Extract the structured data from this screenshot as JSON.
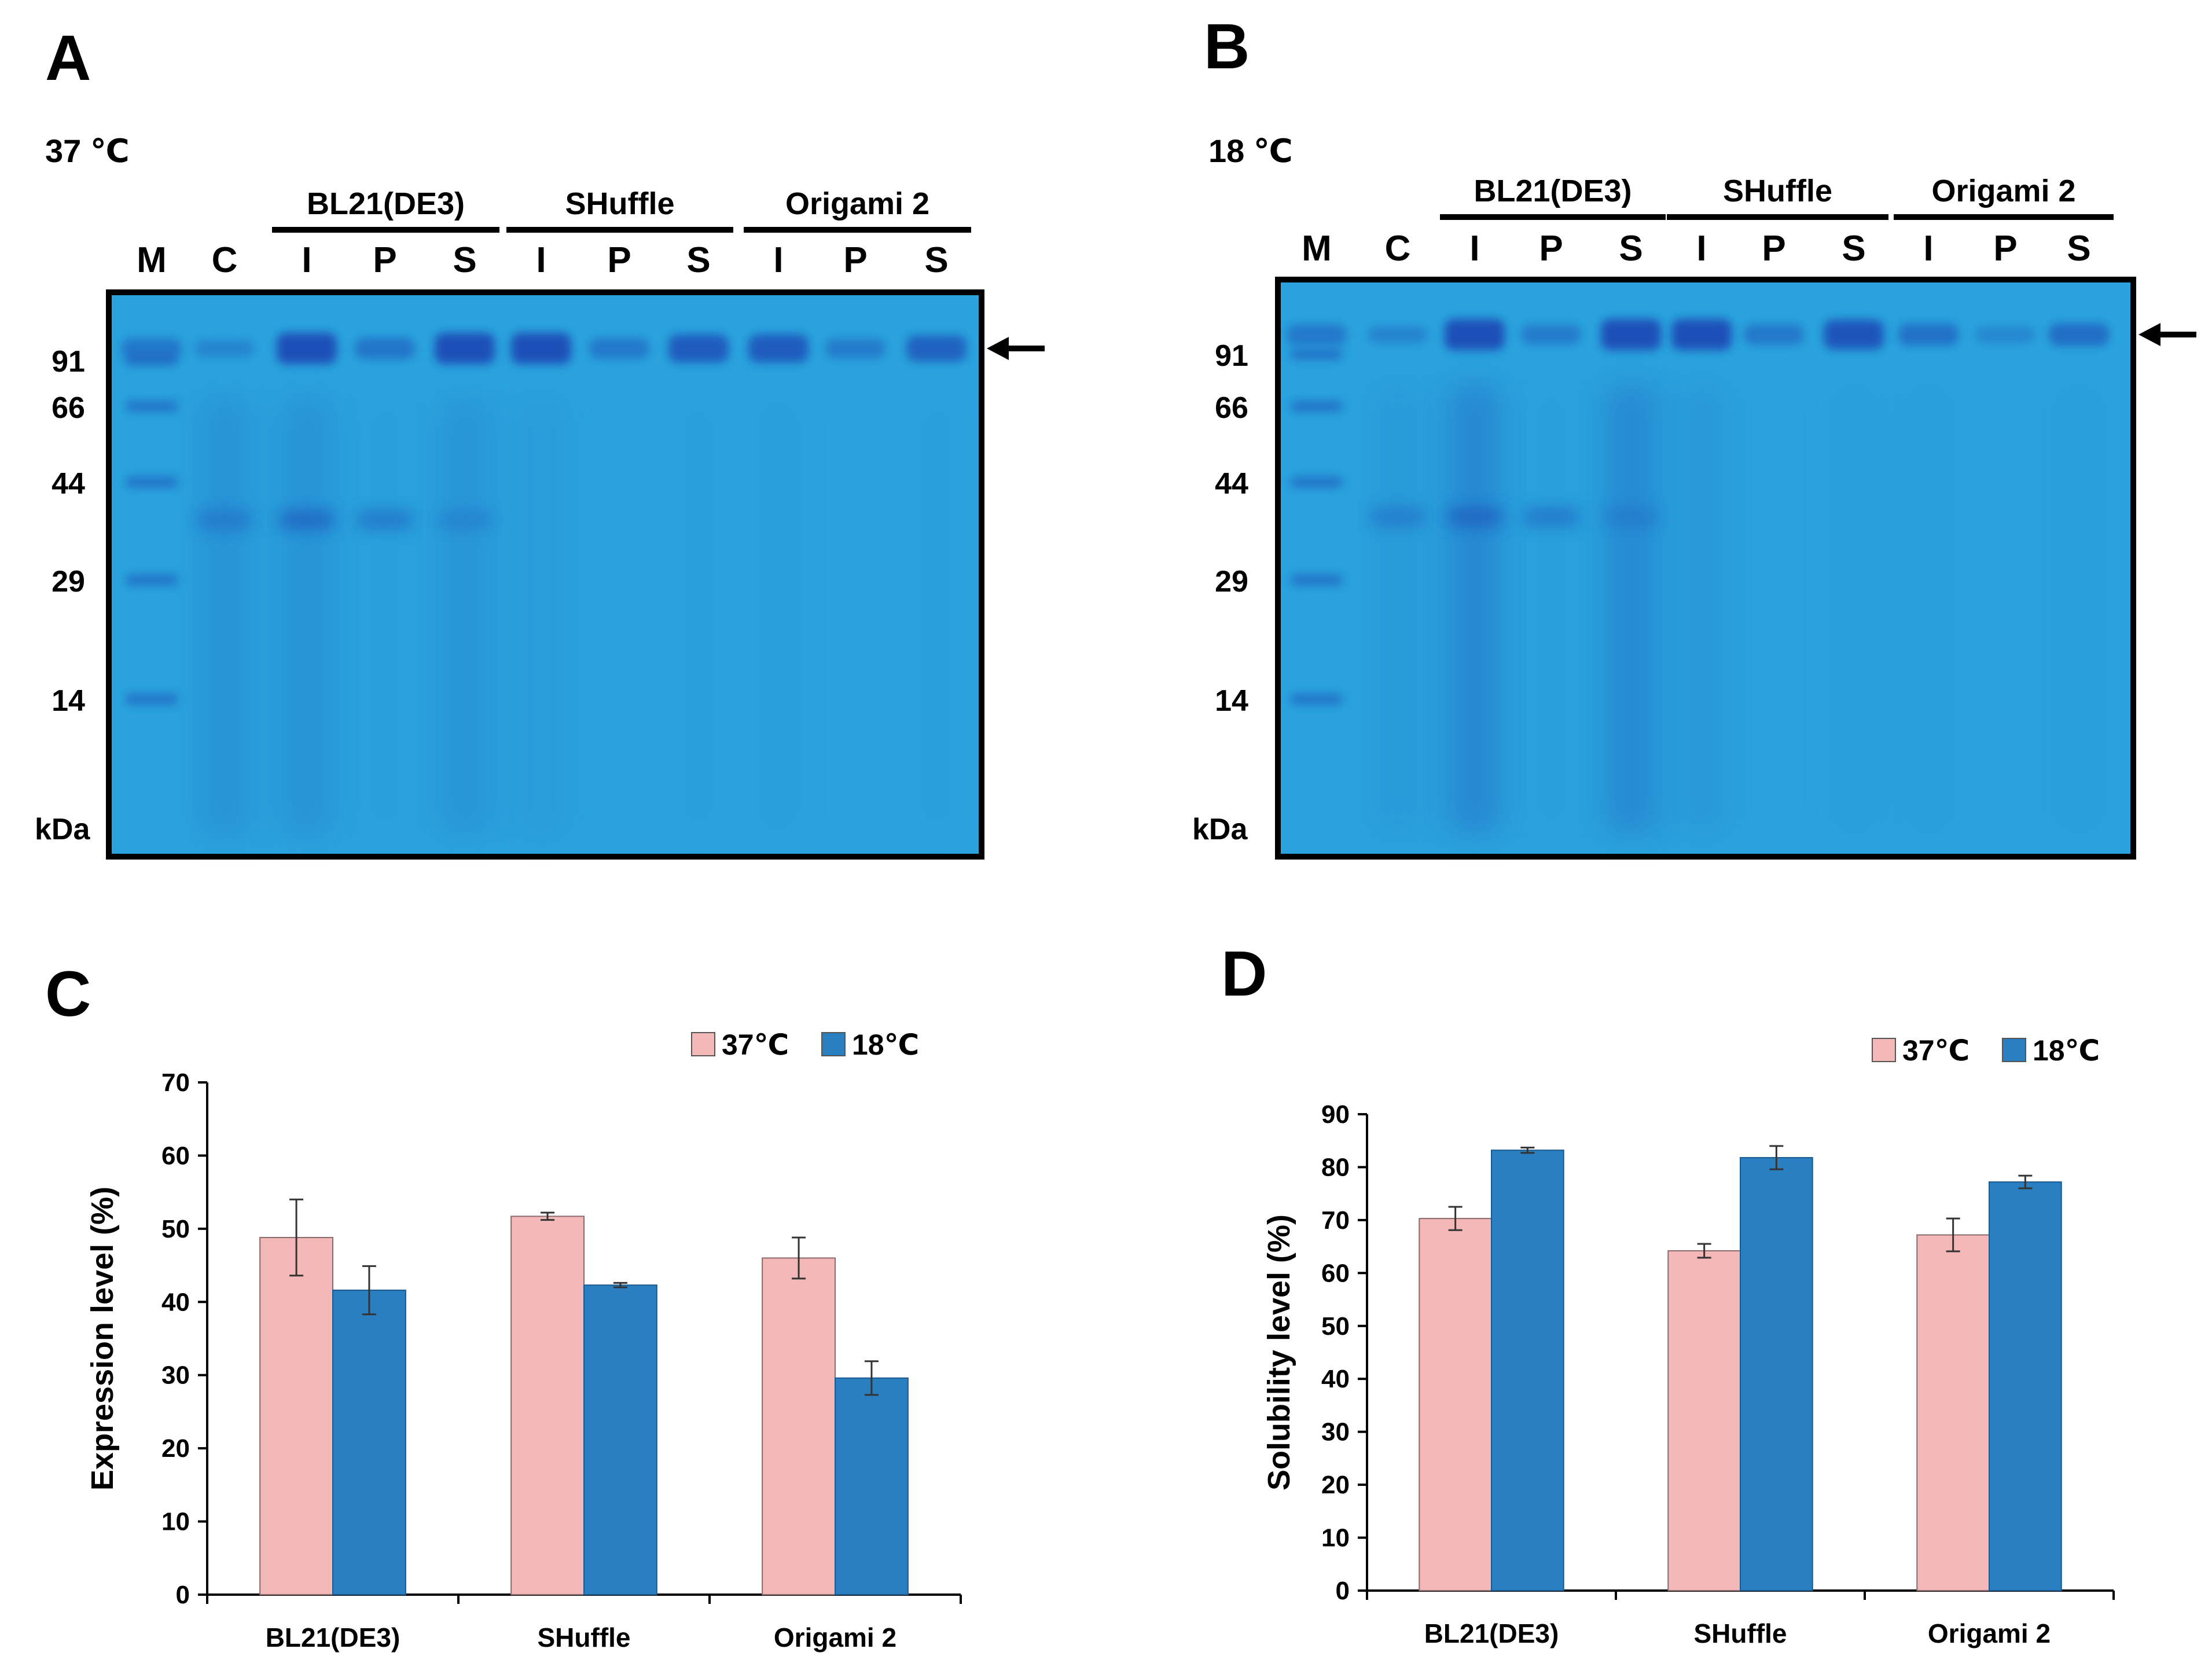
{
  "panels": {
    "A": {
      "letter": "A",
      "temperature": "37 ℃",
      "groups": [
        "BL21(DE3)",
        "SHuffle",
        "Origami 2"
      ],
      "lanes": [
        "M",
        "C",
        "I",
        "P",
        "S",
        "I",
        "P",
        "S",
        "I",
        "P",
        "S"
      ],
      "markers": [
        "91",
        "66",
        "44",
        "29",
        "14"
      ],
      "unit": "kDa"
    },
    "B": {
      "letter": "B",
      "temperature": "18 ℃",
      "groups": [
        "BL21(DE3)",
        "SHuffle",
        "Origami 2"
      ],
      "lanes": [
        "M",
        "C",
        "I",
        "P",
        "S",
        "I",
        "P",
        "S",
        "I",
        "P",
        "S"
      ],
      "markers": [
        "91",
        "66",
        "44",
        "29",
        "14"
      ],
      "unit": "kDa"
    },
    "C": {
      "letter": "C"
    },
    "D": {
      "letter": "D"
    }
  },
  "colors": {
    "gel_background": "#2aa3dd",
    "band": "#1a4fb8",
    "series_37": "#f4b8b8",
    "series_18": "#2a7fc0"
  },
  "chart_data": [
    {
      "type": "bar",
      "title": "",
      "xlabel": "",
      "ylabel": "Expression level (%)",
      "categories": [
        "BL21(DE3)",
        "SHuffle",
        "Origami 2"
      ],
      "series": [
        {
          "name": "37℃",
          "values": [
            48.8,
            51.7,
            46.0
          ],
          "errors": [
            5.2,
            0.5,
            2.8
          ]
        },
        {
          "name": "18℃",
          "values": [
            41.6,
            42.3,
            29.6
          ],
          "errors": [
            3.3,
            0.3,
            2.3
          ]
        }
      ],
      "ylim": [
        0,
        70
      ],
      "yticks": [
        "0",
        "10",
        "20",
        "30",
        "40",
        "50",
        "60",
        "70"
      ],
      "legend": "top-right"
    },
    {
      "type": "bar",
      "title": "",
      "xlabel": "",
      "ylabel": "Solubility level (%)",
      "categories": [
        "BL21(DE3)",
        "SHuffle",
        "Origami 2"
      ],
      "series": [
        {
          "name": "37℃",
          "values": [
            70.3,
            64.2,
            67.2
          ],
          "errors": [
            2.2,
            1.3,
            3.1
          ]
        },
        {
          "name": "18℃",
          "values": [
            83.2,
            81.8,
            77.2
          ],
          "errors": [
            0.5,
            2.2,
            1.2
          ]
        }
      ],
      "ylim": [
        0,
        90
      ],
      "yticks": [
        "0",
        "10",
        "20",
        "30",
        "40",
        "50",
        "60",
        "70",
        "80",
        "90"
      ],
      "legend": "top-right"
    }
  ]
}
